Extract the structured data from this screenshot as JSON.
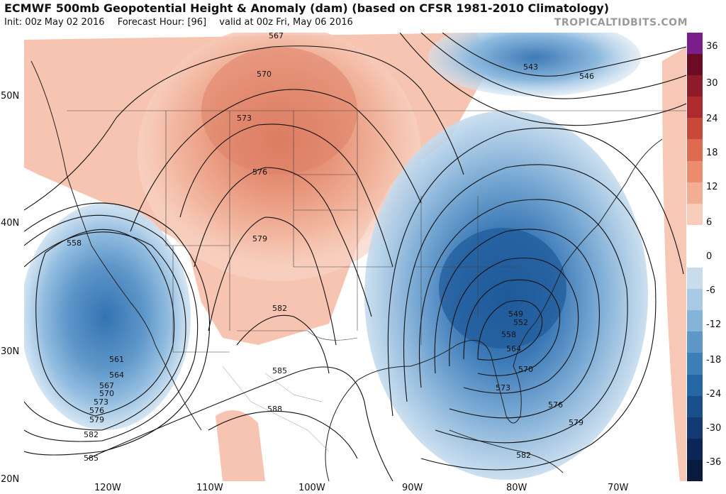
{
  "header": {
    "title": "ECMWF 500mb Geopotential Height & Anomaly (dam) (based on CFSR 1981-2010 Climatology)",
    "init": "Init: 00z May 02 2016",
    "forecast_hour": "Forecast Hour: [96]",
    "valid": "valid at 00z Fri, May 06 2016",
    "brand": "TROPICALTIDBITS.COM"
  },
  "axes": {
    "lat_labels": [
      "50N",
      "40N",
      "30N",
      "20N"
    ],
    "lon_labels": [
      "120W",
      "110W",
      "100W",
      "90W",
      "80W",
      "70W"
    ]
  },
  "contour_labels": [
    "567",
    "570",
    "573",
    "576",
    "579",
    "582",
    "585",
    "588",
    "543",
    "546",
    "549",
    "552",
    "558",
    "564",
    "570",
    "573",
    "576",
    "579",
    "582",
    "558",
    "561",
    "564",
    "567",
    "570",
    "573",
    "576",
    "579",
    "582",
    "585"
  ],
  "colorbar": {
    "labels": [
      "36",
      "30",
      "24",
      "18",
      "12",
      "6",
      "0",
      "-6",
      "-12",
      "-18",
      "-24",
      "-30",
      "-36"
    ],
    "colors": [
      "#7a1e8c",
      "#6b0b24",
      "#8e1b2a",
      "#ad2b2e",
      "#c8483a",
      "#de6a4f",
      "#ec8d6f",
      "#f3ad94",
      "#f8ccbb",
      "#ffffff",
      "#ffffff",
      "#c8dcec",
      "#a9c9e4",
      "#86b3d8",
      "#5f98c8",
      "#3f7fb8",
      "#2766a4",
      "#1a4f8c",
      "#133a72",
      "#0c2757",
      "#081a3e"
    ]
  }
}
